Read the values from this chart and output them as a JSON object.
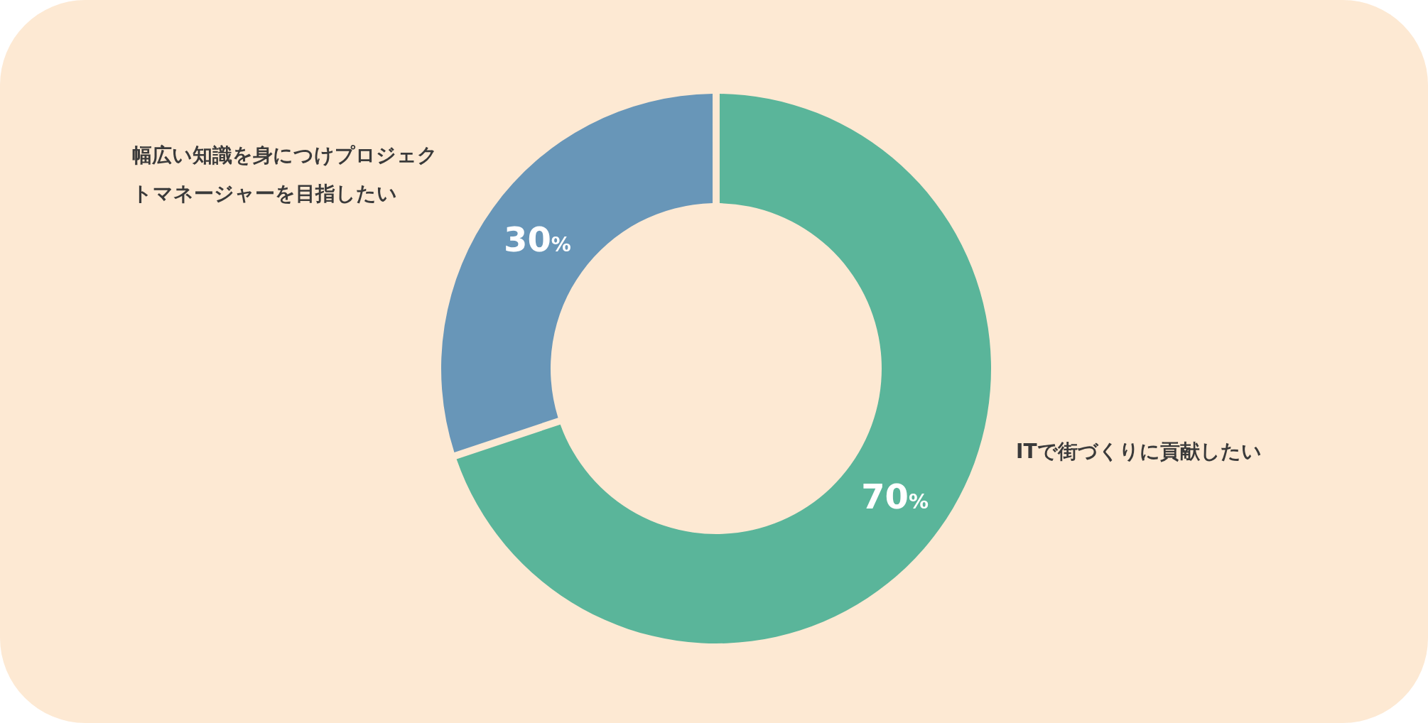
{
  "chart_data": {
    "type": "donut",
    "categories": [
      "ITで街づくりに貢献したい",
      "幅広い知識を身につけプロジェクトマネージャーを目指したい"
    ],
    "values": [
      70,
      30
    ],
    "colors": [
      "#5ab59a",
      "#6896b8"
    ],
    "value_labels": [
      "70%",
      "30%"
    ]
  }
}
